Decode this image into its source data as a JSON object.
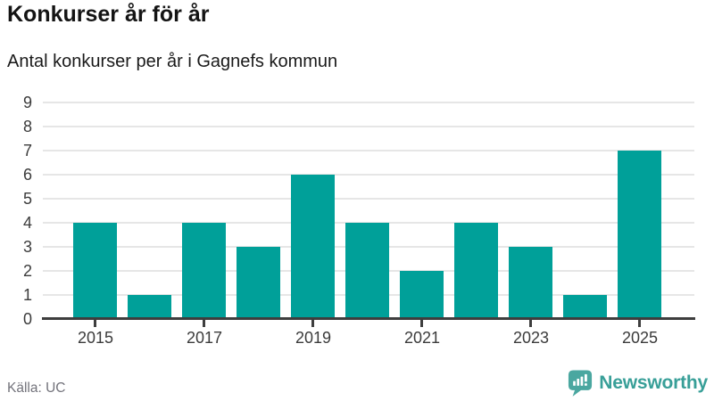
{
  "header": {
    "title": "Konkurser år för år",
    "subtitle": "Antal konkurser per år i Gagnefs kommun"
  },
  "chart_data": {
    "type": "bar",
    "title": "Konkurser år för år",
    "subtitle": "Antal konkurser per år i Gagnefs kommun",
    "categories": [
      "2015",
      "2016",
      "2017",
      "2018",
      "2019",
      "2020",
      "2021",
      "2022",
      "2023",
      "2024",
      "2025"
    ],
    "values": [
      4,
      1,
      4,
      3,
      6,
      4,
      2,
      4,
      3,
      1,
      7
    ],
    "xlabel": "",
    "ylabel": "",
    "ylim": [
      0,
      9
    ],
    "yticks": [
      0,
      1,
      2,
      3,
      4,
      5,
      6,
      7,
      8,
      9
    ],
    "xticks_shown": [
      "2015",
      "2017",
      "2019",
      "2021",
      "2023",
      "2025"
    ],
    "grid": "horizontal",
    "legend_position": "none",
    "bar_color": "#00a099",
    "gridline_color": "#e6e6e6",
    "axis_color": "#3e3e3e",
    "tick_label_color": "#3b3b3b"
  },
  "footer": {
    "source": "Källa: UC",
    "brand": "Newsworthy",
    "brand_color": "#389f98",
    "brand_icon": "newsworthy-bubble-barchart-icon"
  }
}
